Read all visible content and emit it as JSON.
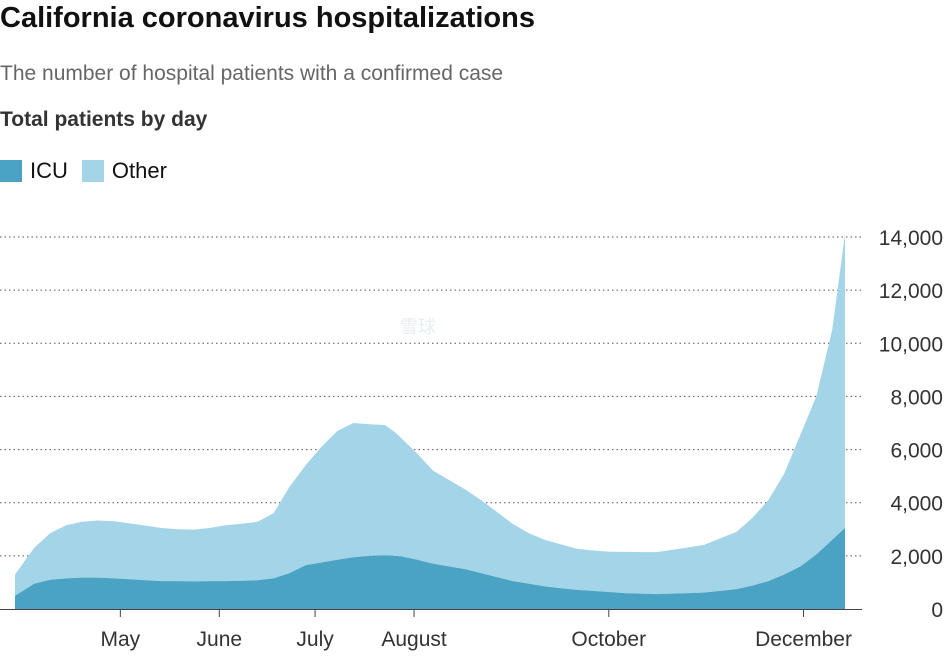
{
  "title": "California coronavirus hospitalizations",
  "subtitle": "The number of hospital patients with a confirmed case",
  "section_label": "Total patients by day",
  "legend": [
    {
      "label": "ICU",
      "color": "#4aa3c3"
    },
    {
      "label": "Other",
      "color": "#a3d4e8"
    }
  ],
  "colors": {
    "icu": "#4aa3c3",
    "other": "#a3d4e8",
    "grid": "#555555"
  },
  "chart_data": {
    "type": "area",
    "stacked": true,
    "title": "Total patients by day",
    "x_unit": "day of year 2020",
    "xlim": [
      89,
      349
    ],
    "ylim": [
      0,
      14000
    ],
    "y_ticks": [
      0,
      2000,
      4000,
      6000,
      8000,
      10000,
      12000,
      14000
    ],
    "y_tick_labels": [
      "0",
      "2,000",
      "4,000",
      "6,000",
      "8,000",
      "10,000",
      "12,000",
      "14,000"
    ],
    "x_ticks": [
      {
        "day": 122,
        "label": "May"
      },
      {
        "day": 153,
        "label": "June"
      },
      {
        "day": 183,
        "label": "July"
      },
      {
        "day": 214,
        "label": "August"
      },
      {
        "day": 275,
        "label": "October"
      },
      {
        "day": 336,
        "label": "December"
      }
    ],
    "x": [
      89,
      95,
      100,
      105,
      110,
      115,
      120,
      125,
      130,
      135,
      140,
      145,
      150,
      155,
      160,
      165,
      170,
      175,
      180,
      185,
      190,
      195,
      200,
      205,
      208,
      210,
      215,
      220,
      225,
      230,
      235,
      240,
      245,
      250,
      255,
      260,
      265,
      270,
      275,
      280,
      285,
      290,
      295,
      300,
      305,
      310,
      315,
      320,
      325,
      330,
      335,
      340,
      345,
      349
    ],
    "series": [
      {
        "name": "ICU",
        "values": [
          500,
          950,
          1100,
          1150,
          1180,
          1180,
          1150,
          1120,
          1080,
          1050,
          1050,
          1040,
          1050,
          1050,
          1060,
          1080,
          1150,
          1350,
          1650,
          1750,
          1850,
          1950,
          2000,
          2020,
          2000,
          1980,
          1850,
          1700,
          1600,
          1500,
          1350,
          1200,
          1050,
          950,
          850,
          780,
          720,
          680,
          640,
          600,
          580,
          560,
          580,
          600,
          620,
          680,
          750,
          880,
          1050,
          1300,
          1600,
          2050,
          2600,
          3050
        ]
      },
      {
        "name": "Other",
        "values": [
          800,
          1350,
          1750,
          2000,
          2100,
          2150,
          2150,
          2100,
          2050,
          2000,
          1950,
          1950,
          2000,
          2100,
          2150,
          2200,
          2450,
          3250,
          3750,
          4350,
          4850,
          5050,
          4950,
          4900,
          4650,
          4450,
          4000,
          3500,
          3250,
          3000,
          2750,
          2450,
          2150,
          1900,
          1750,
          1650,
          1550,
          1520,
          1520,
          1550,
          1560,
          1580,
          1650,
          1720,
          1800,
          1980,
          2150,
          2550,
          3050,
          3800,
          4950,
          5950,
          7900,
          11050
        ]
      }
    ]
  },
  "watermark": "雪球"
}
